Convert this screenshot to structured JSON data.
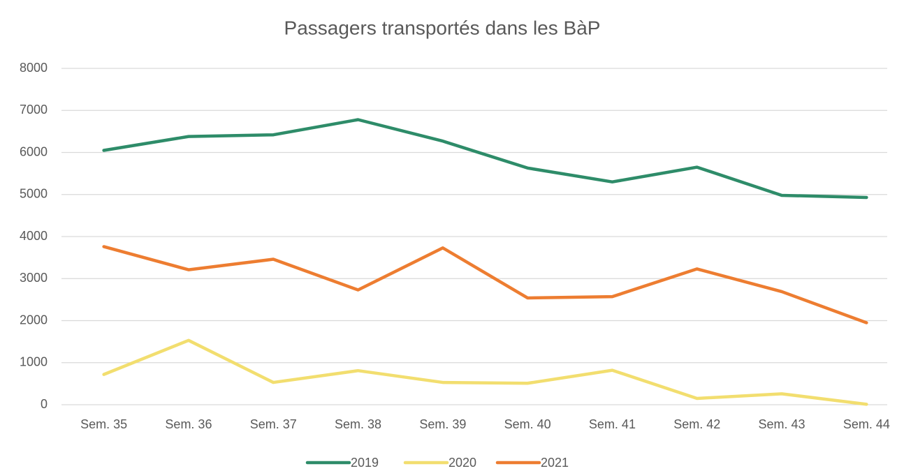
{
  "chart_data": {
    "type": "line",
    "title": "Passagers transportés dans les BàP",
    "categories": [
      "Sem. 35",
      "Sem. 36",
      "Sem. 37",
      "Sem. 38",
      "Sem. 39",
      "Sem. 40",
      "Sem. 41",
      "Sem. 42",
      "Sem. 43",
      "Sem. 44"
    ],
    "series": [
      {
        "name": "2019",
        "color": "#2e8c69",
        "values": [
          6050,
          6380,
          6420,
          6780,
          6270,
          5630,
          5300,
          5650,
          4980,
          4930
        ]
      },
      {
        "name": "2020",
        "color": "#f2de6f",
        "values": [
          720,
          1530,
          530,
          810,
          530,
          510,
          820,
          150,
          260,
          10
        ]
      },
      {
        "name": "2021",
        "color": "#ed7d31",
        "values": [
          3760,
          3210,
          3460,
          2730,
          3730,
          2540,
          2570,
          3230,
          2690,
          1950
        ]
      }
    ],
    "ylim": [
      0,
      8000
    ],
    "yticks": [
      0,
      1000,
      2000,
      3000,
      4000,
      5000,
      6000,
      7000,
      8000
    ],
    "grid": true,
    "legend": "bottom"
  }
}
